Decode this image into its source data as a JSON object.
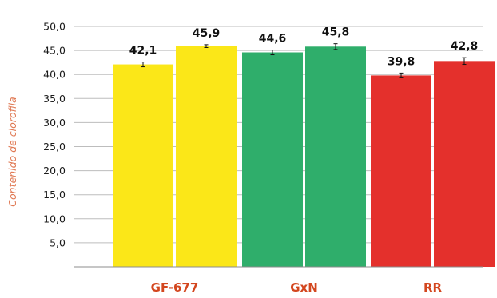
{
  "chart_data": {
    "type": "bar",
    "categories": [
      "GF-677",
      "GxN",
      "RR"
    ],
    "series": [
      {
        "values": [
          42.1,
          44.6,
          39.8
        ]
      },
      {
        "values": [
          45.9,
          45.8,
          42.8
        ]
      }
    ],
    "data_labels": [
      [
        "42,1",
        "45,9"
      ],
      [
        "44,6",
        "45,8"
      ],
      [
        "39,8",
        "42,8"
      ]
    ],
    "error_bars": [
      [
        0.5,
        0.3
      ],
      [
        0.5,
        0.6
      ],
      [
        0.5,
        0.7
      ]
    ],
    "category_colors": [
      "#fbe718",
      "#2fae6b",
      "#e4302c"
    ],
    "category_label_color": "#d3461e",
    "ylabel": "Contenido de clorofila",
    "ylabel_color": "#e07a55",
    "ylim": [
      0,
      50
    ],
    "yticks": [
      5,
      10,
      15,
      20,
      25,
      30,
      35,
      40,
      45,
      50
    ],
    "ytick_labels": [
      "5,0",
      "10,0",
      "15,0",
      "20,0",
      "25,0",
      "30,0",
      "35,0",
      "40,0",
      "45,0",
      "50,0"
    ],
    "grid": true,
    "legend": "none"
  }
}
